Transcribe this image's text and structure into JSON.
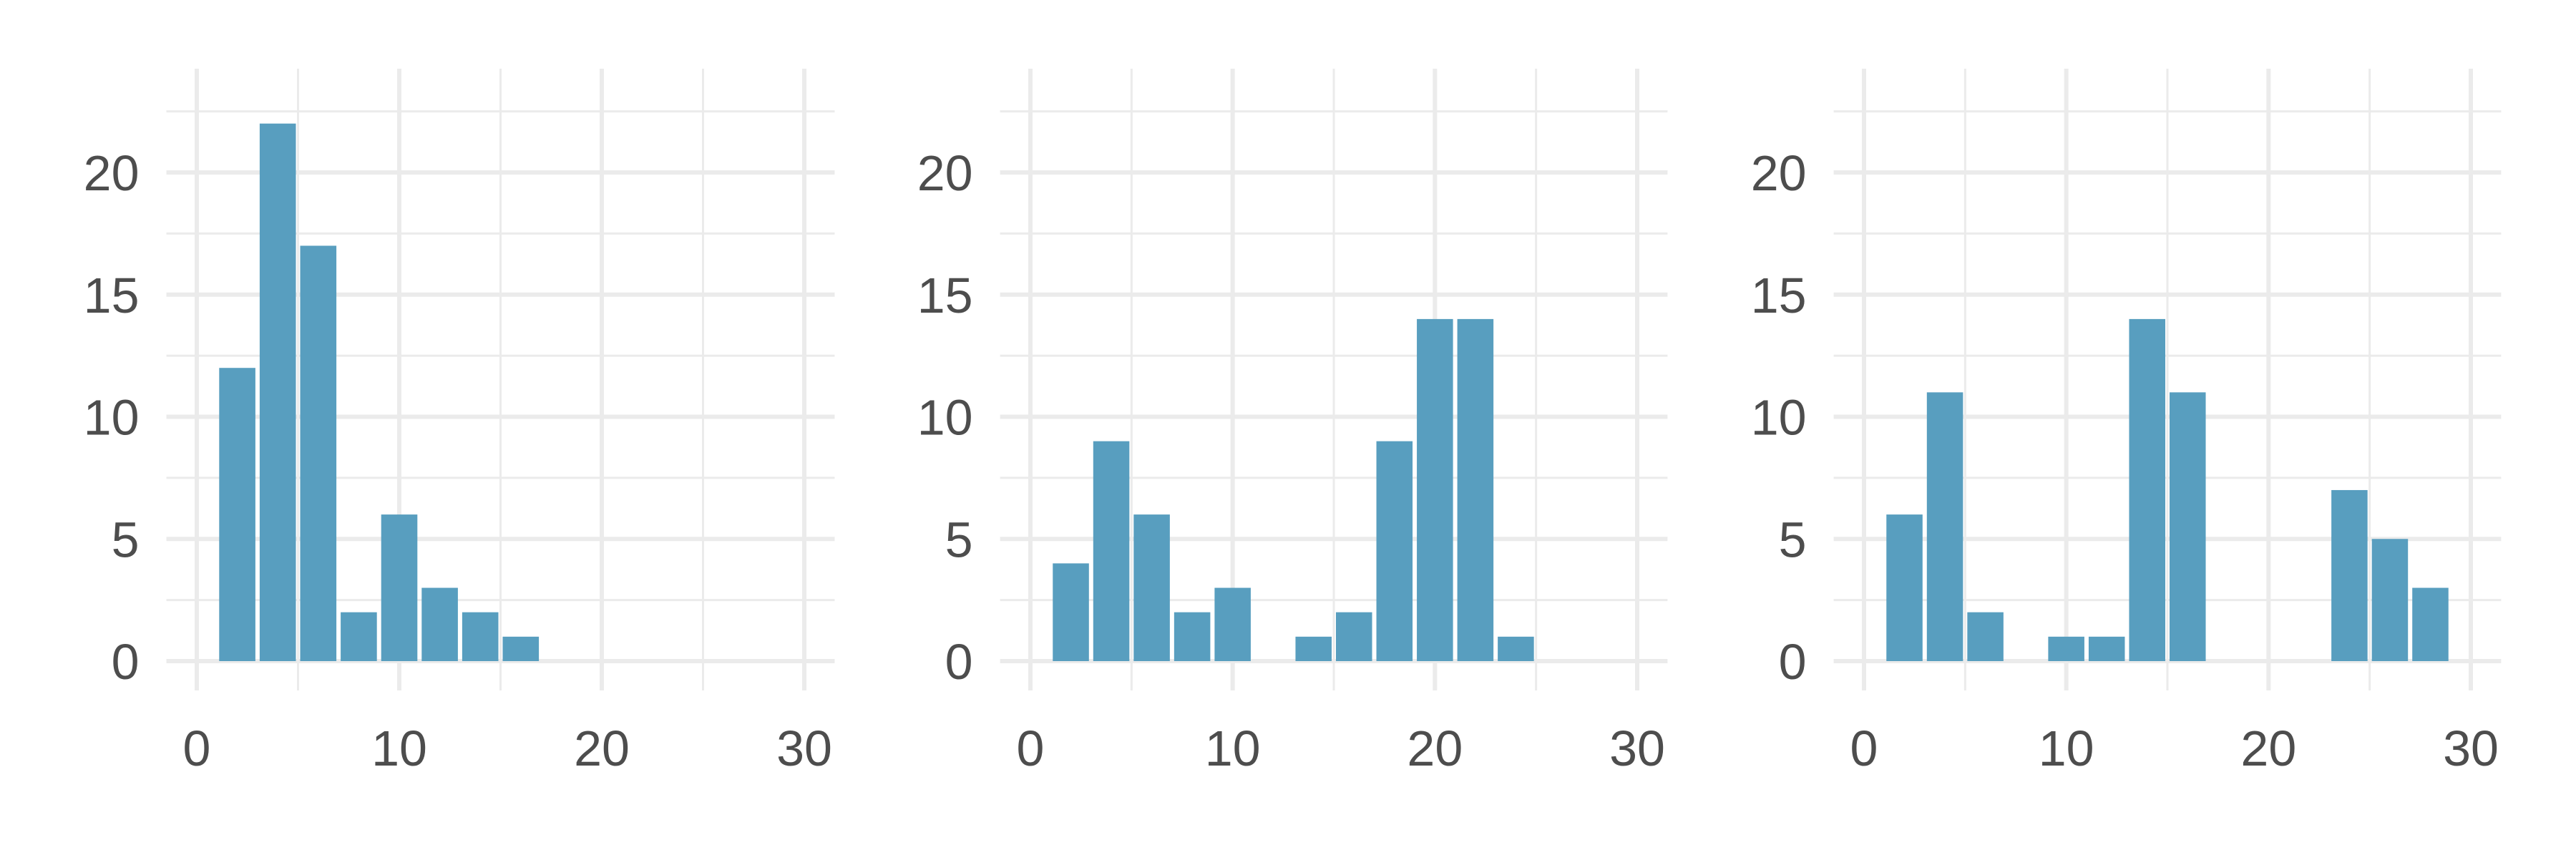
{
  "chart_data": [
    {
      "type": "bar",
      "title": "",
      "xlabel": "",
      "ylabel": "",
      "x": [
        2,
        4,
        6,
        8,
        10,
        12,
        14,
        16
      ],
      "values": [
        12,
        22,
        17,
        2,
        6,
        3,
        2,
        1
      ],
      "bin_width": 2,
      "xlim": [
        -1.5,
        31.5
      ],
      "ylim": [
        -1,
        24
      ],
      "xticks": [
        "0",
        "10",
        "20",
        "30"
      ],
      "yticks": [
        "0",
        "5",
        "10",
        "15",
        "20"
      ],
      "grid": true,
      "bar_color": "#589ebf"
    },
    {
      "type": "bar",
      "title": "",
      "xlabel": "",
      "ylabel": "",
      "x": [
        2,
        4,
        6,
        8,
        10,
        12,
        14,
        16,
        18,
        20,
        22,
        24
      ],
      "values": [
        4,
        9,
        6,
        2,
        3,
        0,
        1,
        2,
        9,
        14,
        14,
        1
      ],
      "bin_width": 2,
      "xlim": [
        -1.5,
        31.5
      ],
      "ylim": [
        -1,
        24
      ],
      "xticks": [
        "0",
        "10",
        "20",
        "30"
      ],
      "yticks": [
        "0",
        "5",
        "10",
        "15",
        "20"
      ],
      "grid": true,
      "bar_color": "#589ebf"
    },
    {
      "type": "bar",
      "title": "",
      "xlabel": "",
      "ylabel": "",
      "x": [
        2,
        4,
        6,
        8,
        10,
        12,
        14,
        16,
        18,
        20,
        22,
        24,
        26,
        28
      ],
      "values": [
        6,
        11,
        2,
        0,
        1,
        1,
        14,
        11,
        0,
        0,
        0,
        7,
        5,
        3
      ],
      "bin_width": 2,
      "xlim": [
        -1.5,
        31.5
      ],
      "ylim": [
        -1,
        24
      ],
      "xticks": [
        "0",
        "10",
        "20",
        "30"
      ],
      "yticks": [
        "0",
        "5",
        "10",
        "15",
        "20"
      ],
      "grid": true,
      "bar_color": "#589ebf"
    }
  ]
}
